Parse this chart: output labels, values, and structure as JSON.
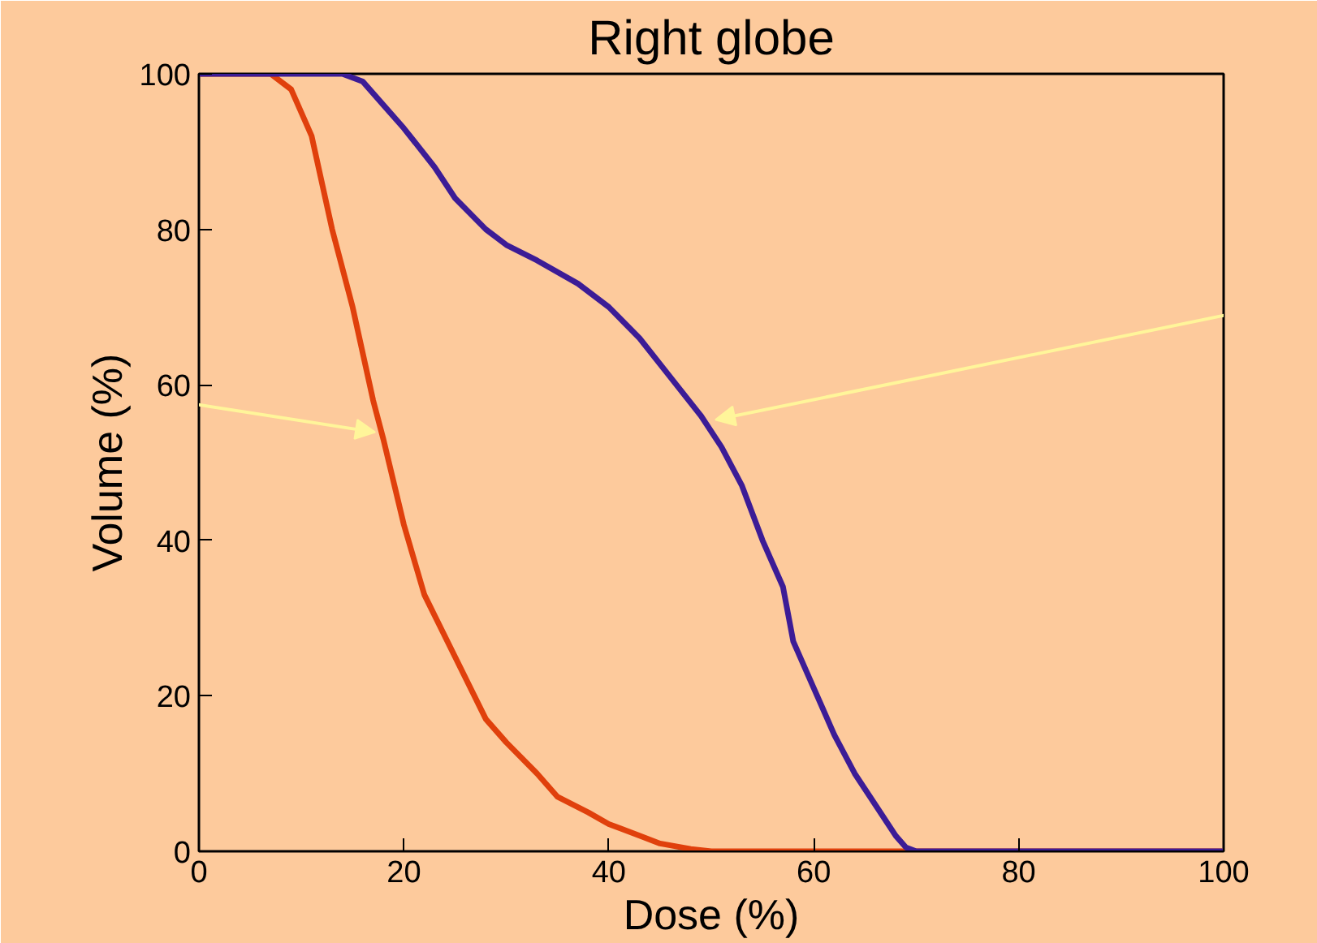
{
  "chart_data": {
    "type": "line",
    "title": "Right globe",
    "xlabel": "Dose (%)",
    "ylabel": "Volume (%)",
    "xlim": [
      0,
      100
    ],
    "ylim": [
      0,
      100
    ],
    "xticks": [
      0,
      20,
      40,
      60,
      80,
      100
    ],
    "yticks": [
      0,
      20,
      40,
      60,
      80,
      100
    ],
    "grid": false,
    "marker": "none",
    "line_style": "solid",
    "series": [
      {
        "color": "#e0400c",
        "x": [
          0,
          7,
          9,
          11,
          13,
          15,
          17,
          18,
          20,
          22,
          25,
          28,
          30,
          33,
          35,
          38,
          40,
          43,
          45,
          48,
          50,
          100
        ],
        "values": [
          100,
          100,
          98,
          92,
          80,
          70,
          58,
          53,
          42,
          33,
          25,
          17,
          14,
          10,
          7,
          5,
          3.5,
          2,
          1,
          0.3,
          0,
          0
        ]
      },
      {
        "color": "#3c1c96",
        "x": [
          0,
          14,
          16,
          18,
          20,
          23,
          25,
          28,
          30,
          33,
          37,
          40,
          43,
          46,
          49,
          51,
          53,
          55,
          57,
          58,
          60,
          62,
          64,
          66,
          68,
          69,
          70,
          100
        ],
        "values": [
          100,
          100,
          99,
          96,
          93,
          88,
          84,
          80,
          78,
          76,
          73,
          70,
          66,
          61,
          56,
          52,
          47,
          40,
          34,
          27,
          21,
          15,
          10,
          6,
          2,
          0.5,
          0,
          0
        ]
      }
    ]
  }
}
